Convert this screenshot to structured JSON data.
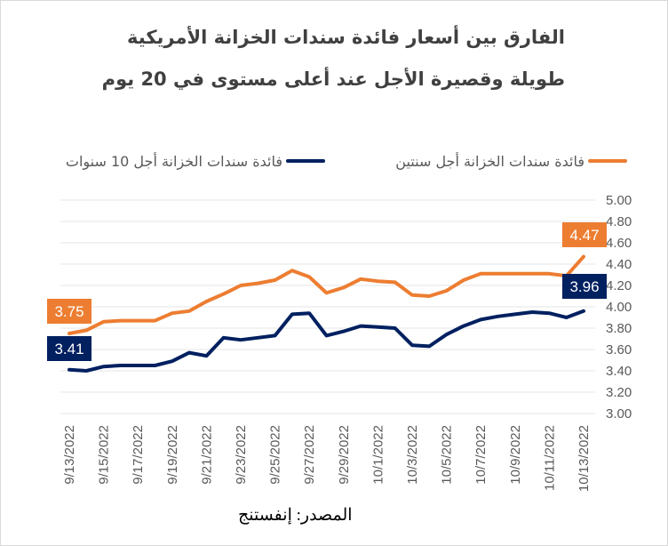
{
  "title_line1": "الفارق بين أسعار فائدة سندات الخزانة الأمريكية",
  "title_line2": "طويلة وقصيرة الأجل  عند أعلى مستوى في 20 يوم",
  "source": "المصدر: إنفستنج",
  "colors": {
    "two_year": "#ED7D31",
    "ten_year": "#002060",
    "grid": "#e6e6e6",
    "text": "#595959"
  },
  "chart_data": {
    "type": "line",
    "x": [
      "9/13/2022",
      "9/14/2022",
      "9/15/2022",
      "9/16/2022",
      "9/17/2022",
      "9/18/2022",
      "9/19/2022",
      "9/20/2022",
      "9/21/2022",
      "9/22/2022",
      "9/23/2022",
      "9/24/2022",
      "9/25/2022",
      "9/26/2022",
      "9/27/2022",
      "9/28/2022",
      "9/29/2022",
      "9/30/2022",
      "10/1/2022",
      "10/2/2022",
      "10/3/2022",
      "10/4/2022",
      "10/5/2022",
      "10/6/2022",
      "10/7/2022",
      "10/8/2022",
      "10/9/2022",
      "10/10/2022",
      "10/11/2022",
      "10/12/2022",
      "10/13/2022"
    ],
    "x_tick_labels": [
      "9/13/2022",
      "9/15/2022",
      "9/17/2022",
      "9/19/2022",
      "9/21/2022",
      "9/23/2022",
      "9/25/2022",
      "9/27/2022",
      "9/29/2022",
      "10/1/2022",
      "10/3/2022",
      "10/5/2022",
      "10/7/2022",
      "10/9/2022",
      "10/11/2022",
      "10/13/2022"
    ],
    "series": [
      {
        "name": "فائدة سندات الخزانة أجل سنتين",
        "color": "#ED7D31",
        "values": [
          3.75,
          3.78,
          3.86,
          3.87,
          3.87,
          3.87,
          3.94,
          3.96,
          4.05,
          4.12,
          4.2,
          4.22,
          4.25,
          4.34,
          4.28,
          4.13,
          4.18,
          4.26,
          4.24,
          4.23,
          4.11,
          4.1,
          4.15,
          4.25,
          4.31,
          4.31,
          4.31,
          4.31,
          4.31,
          4.29,
          4.47
        ],
        "start_label": "3.75",
        "end_label": "4.47"
      },
      {
        "name": "فائدة سندات الخزانة أجل 10 سنوات",
        "color": "#002060",
        "values": [
          3.41,
          3.4,
          3.44,
          3.45,
          3.45,
          3.45,
          3.49,
          3.57,
          3.54,
          3.71,
          3.69,
          3.71,
          3.73,
          3.93,
          3.94,
          3.73,
          3.77,
          3.82,
          3.81,
          3.8,
          3.64,
          3.63,
          3.74,
          3.82,
          3.88,
          3.91,
          3.93,
          3.95,
          3.94,
          3.9,
          3.96
        ],
        "start_label": "3.41",
        "end_label": "3.96"
      }
    ],
    "ylim": [
      3.0,
      5.0
    ],
    "y_ticks": [
      "3.00",
      "3.20",
      "3.40",
      "3.60",
      "3.80",
      "4.00",
      "4.20",
      "4.40",
      "4.60",
      "4.80",
      "5.00"
    ],
    "grid": true,
    "legend_position": "top"
  }
}
